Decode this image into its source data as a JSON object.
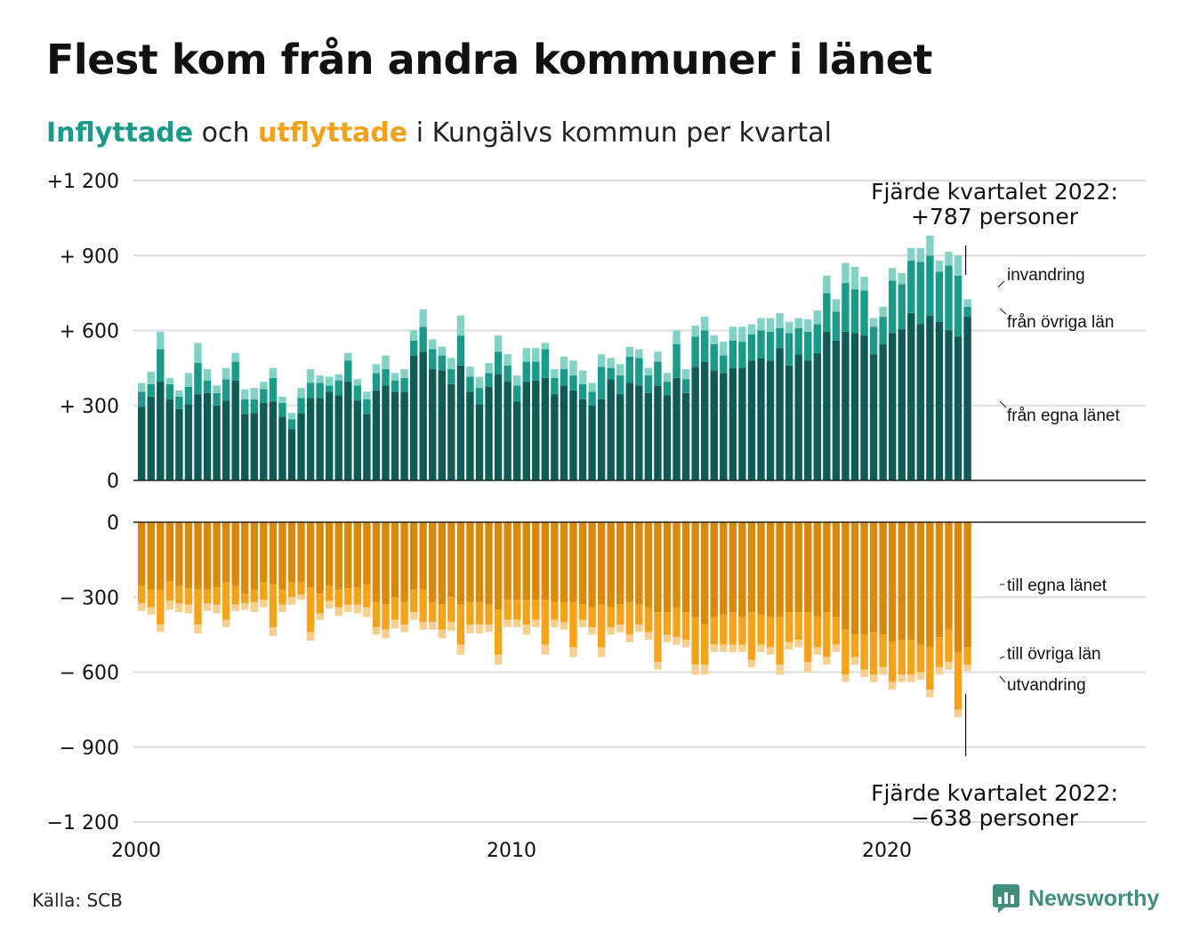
{
  "title": "Flest kom från andra kommuner i länet",
  "subtitle": {
    "part_in": "Inflyttade",
    "part_mid": " och ",
    "part_out": "utflyttade",
    "part_rest": " i Kungälvs kommun per kvartal"
  },
  "source": "Källa: SCB",
  "logo_text": "Newsworthy",
  "annotations": {
    "top_line1": "Fjärde kvartalet 2022:",
    "top_line2": "+787 personer",
    "bottom_line1": "Fjärde kvartalet 2022:",
    "bottom_line2": "−638 personer"
  },
  "colors": {
    "in_own": "#0e5c55",
    "in_other": "#1a9b8a",
    "in_immigration": "#82d3c6",
    "out_own": "#d98a0b",
    "out_other": "#f5a31a",
    "out_emigration": "#f7d08f",
    "grid": "#dddddd",
    "axis": "#222222"
  },
  "chart_data": {
    "type": "bar",
    "stacked": true,
    "x_start": "2000Q1",
    "quarters_per_year": 4,
    "x_ticks": [
      "2000",
      "2010",
      "2020"
    ],
    "upper": {
      "ylim": [
        0,
        1200
      ],
      "yticks": [
        0,
        300,
        600,
        900,
        1200
      ],
      "ytick_labels": [
        "0",
        "+ 300",
        "+ 600",
        "+ 900",
        "+1 200"
      ],
      "series": [
        {
          "name": "från egna länet",
          "values": [
            295,
            335,
            395,
            325,
            285,
            305,
            345,
            350,
            300,
            320,
            400,
            265,
            270,
            310,
            315,
            255,
            205,
            270,
            330,
            330,
            355,
            340,
            395,
            320,
            265,
            360,
            380,
            355,
            355,
            500,
            515,
            445,
            440,
            385,
            460,
            355,
            305,
            375,
            425,
            395,
            315,
            395,
            400,
            410,
            345,
            380,
            360,
            325,
            300,
            325,
            405,
            345,
            390,
            380,
            350,
            380,
            340,
            410,
            350,
            455,
            475,
            440,
            430,
            450,
            450,
            480,
            490,
            480,
            530,
            460,
            505,
            480,
            510,
            595,
            560,
            595,
            590,
            580,
            505,
            545,
            590,
            605,
            670,
            625,
            660,
            635,
            600,
            575,
            655
          ]
        },
        {
          "name": "från övriga län",
          "values": [
            60,
            50,
            130,
            60,
            50,
            70,
            125,
            50,
            50,
            85,
            75,
            60,
            55,
            55,
            95,
            55,
            40,
            60,
            60,
            60,
            25,
            60,
            85,
            60,
            60,
            70,
            65,
            45,
            55,
            60,
            100,
            80,
            60,
            60,
            120,
            60,
            65,
            55,
            90,
            65,
            65,
            80,
            75,
            115,
            65,
            65,
            60,
            60,
            55,
            130,
            45,
            75,
            105,
            110,
            70,
            95,
            55,
            135,
            55,
            120,
            125,
            105,
            70,
            110,
            105,
            105,
            110,
            115,
            80,
            130,
            105,
            115,
            115,
            155,
            115,
            195,
            175,
            180,
            110,
            110,
            210,
            180,
            210,
            250,
            240,
            200,
            260,
            245,
            40
          ]
        },
        {
          "name": "invandring",
          "values": [
            35,
            50,
            70,
            25,
            25,
            55,
            80,
            45,
            30,
            45,
            35,
            40,
            45,
            30,
            40,
            25,
            25,
            40,
            55,
            30,
            35,
            25,
            30,
            25,
            30,
            35,
            55,
            30,
            35,
            40,
            70,
            40,
            35,
            45,
            80,
            40,
            45,
            40,
            65,
            45,
            40,
            55,
            55,
            25,
            35,
            50,
            60,
            55,
            35,
            50,
            40,
            45,
            40,
            35,
            30,
            40,
            35,
            55,
            40,
            45,
            55,
            35,
            55,
            55,
            60,
            40,
            50,
            55,
            60,
            45,
            40,
            50,
            55,
            70,
            50,
            80,
            90,
            55,
            35,
            40,
            50,
            45,
            50,
            55,
            80,
            45,
            55,
            80,
            30
          ]
        }
      ]
    },
    "lower": {
      "ylim": [
        -1200,
        0
      ],
      "yticks": [
        0,
        -300,
        -600,
        -900,
        -1200
      ],
      "ytick_labels": [
        "0",
        "− 300",
        "− 600",
        "− 900",
        "−1 200"
      ],
      "series": [
        {
          "name": "till egna länet",
          "values": [
            255,
            270,
            270,
            235,
            255,
            265,
            270,
            270,
            260,
            240,
            255,
            285,
            270,
            240,
            250,
            270,
            240,
            240,
            260,
            285,
            255,
            270,
            265,
            260,
            250,
            320,
            330,
            300,
            320,
            270,
            270,
            320,
            330,
            300,
            330,
            320,
            320,
            330,
            350,
            310,
            310,
            310,
            310,
            310,
            320,
            320,
            320,
            330,
            340,
            330,
            340,
            330,
            320,
            330,
            340,
            360,
            360,
            340,
            360,
            380,
            410,
            380,
            370,
            360,
            380,
            360,
            370,
            380,
            380,
            360,
            360,
            360,
            380,
            360,
            380,
            430,
            450,
            450,
            440,
            450,
            480,
            470,
            470,
            490,
            500,
            460,
            430,
            520,
            500
          ]
        },
        {
          "name": "till övriga län",
          "values": [
            70,
            70,
            140,
            80,
            70,
            65,
            140,
            55,
            70,
            150,
            75,
            40,
            50,
            70,
            170,
            60,
            60,
            50,
            180,
            80,
            60,
            70,
            65,
            70,
            90,
            100,
            100,
            90,
            90,
            90,
            130,
            80,
            100,
            100,
            160,
            90,
            90,
            80,
            180,
            80,
            80,
            100,
            80,
            180,
            70,
            80,
            180,
            60,
            80,
            170,
            80,
            80,
            130,
            80,
            100,
            200,
            90,
            120,
            110,
            190,
            160,
            110,
            120,
            130,
            110,
            190,
            120,
            120,
            190,
            120,
            110,
            200,
            120,
            180,
            110,
            180,
            90,
            140,
            170,
            130,
            160,
            140,
            140,
            110,
            170,
            120,
            130,
            230,
            70
          ]
        },
        {
          "name": "utvandring",
          "values": [
            30,
            30,
            30,
            35,
            35,
            35,
            35,
            30,
            35,
            30,
            25,
            25,
            40,
            30,
            35,
            30,
            30,
            20,
            35,
            25,
            30,
            35,
            30,
            35,
            40,
            30,
            35,
            35,
            30,
            30,
            30,
            30,
            35,
            35,
            40,
            35,
            35,
            30,
            40,
            30,
            30,
            40,
            30,
            40,
            30,
            30,
            40,
            30,
            30,
            40,
            30,
            30,
            30,
            30,
            30,
            30,
            30,
            30,
            30,
            40,
            40,
            30,
            30,
            30,
            30,
            30,
            30,
            30,
            40,
            30,
            30,
            40,
            30,
            30,
            30,
            30,
            30,
            30,
            30,
            30,
            30,
            30,
            30,
            30,
            30,
            30,
            30,
            30,
            25
          ]
        }
      ]
    },
    "series_labels": {
      "in": [
        "invandring",
        "från övriga län",
        "från egna länet"
      ],
      "out": [
        "till egna länet",
        "till övriga län",
        "utvandring"
      ]
    }
  }
}
